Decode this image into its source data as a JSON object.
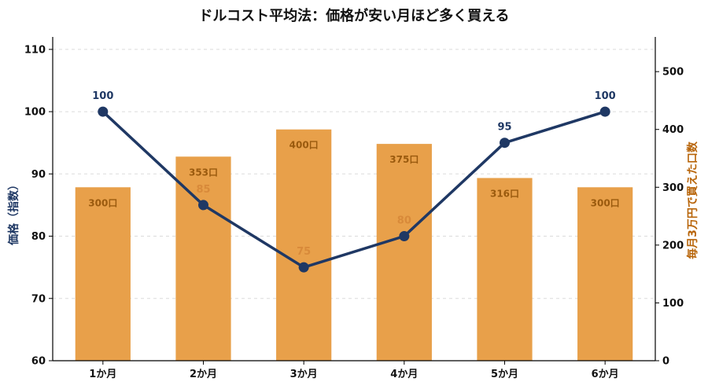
{
  "chart_data": {
    "title": "ドルコスト平均法：価格が安い月ほど多く買える",
    "type": "bar+line",
    "categories": [
      "1か月",
      "2か月",
      "3か月",
      "4か月",
      "5か月",
      "6か月"
    ],
    "bars": {
      "axis": "right",
      "values": [
        300,
        353,
        400,
        375,
        316,
        300
      ],
      "labels": [
        "300口",
        "353口",
        "400口",
        "375口",
        "316口",
        "300口"
      ],
      "color": "#E8A04A",
      "label_color": "#9A5A0E"
    },
    "line": {
      "axis": "left",
      "values": [
        100,
        85,
        75,
        80,
        95,
        100
      ],
      "labels": [
        "100",
        "85",
        "75",
        "80",
        "95",
        "100"
      ],
      "color": "#1F3864"
    },
    "left_axis": {
      "label": "価格（指数）",
      "ylim": [
        60,
        112
      ],
      "ticks": [
        "60",
        "70",
        "80",
        "90",
        "100",
        "110"
      ],
      "tick_values": [
        60,
        70,
        80,
        90,
        100,
        110
      ],
      "color": "#1F3864"
    },
    "right_axis": {
      "label": "毎月3万円で買えた口数",
      "ylim": [
        0,
        560
      ],
      "ticks": [
        "0",
        "100",
        "200",
        "300",
        "400",
        "500"
      ],
      "tick_values": [
        0,
        100,
        200,
        300,
        400,
        500
      ],
      "color": "#B8650A"
    },
    "grid": true
  }
}
